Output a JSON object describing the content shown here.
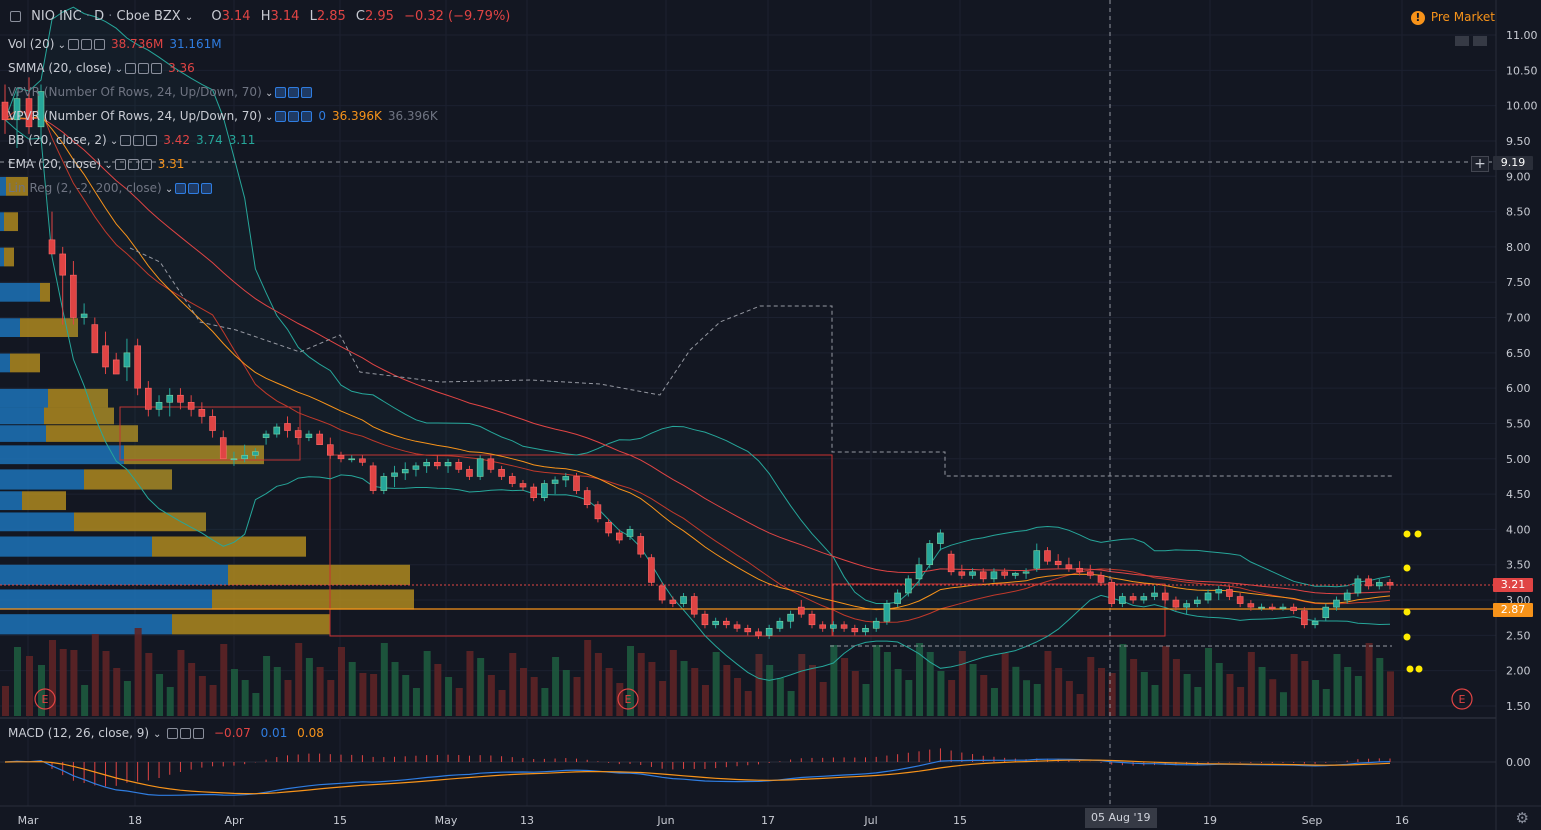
{
  "header": {
    "symbol": "NIO INC",
    "interval": "D",
    "exchange": "Cboe BZX",
    "open_label": "O",
    "open": "3.14",
    "high_label": "H",
    "high": "3.14",
    "low_label": "L",
    "low": "2.85",
    "close_label": "C",
    "close": "2.95",
    "change": "−0.32 (−9.79%)",
    "premarket": "Pre Market"
  },
  "indicators": [
    {
      "name": "Vol (20)",
      "values": [
        "38.736M",
        "31.161M"
      ],
      "colors": [
        "#e04444",
        "#2f7de1"
      ]
    },
    {
      "name": "SMMA (20, close)",
      "values": [
        "3.36"
      ],
      "colors": [
        "#e04444"
      ]
    },
    {
      "name": "VPVR (Number Of Rows, 24, Up/Down, 70)",
      "values": [],
      "colors": []
    },
    {
      "name": "VPVR (Number Of Rows, 24, Up/Down, 70)",
      "values": [
        "0",
        "36.396K",
        "36.396K"
      ],
      "colors": [
        "#2f7de1",
        "#f7931a",
        "#6f7482"
      ]
    },
    {
      "name": "BB (20, close, 2)",
      "values": [
        "3.42",
        "3.74",
        "3.11"
      ],
      "colors": [
        "#e04444",
        "#26a69a",
        "#26a69a"
      ]
    },
    {
      "name": "EMA (20, close)",
      "values": [
        "3.31"
      ],
      "colors": [
        "#f7931a"
      ]
    },
    {
      "name": "Lin Reg (2, -2, 200, close)",
      "values": [],
      "colors": []
    }
  ],
  "macd_legend": {
    "name": "MACD (12, 26, close, 9)",
    "values": [
      "−0.07",
      "0.01",
      "0.08"
    ],
    "colors": [
      "#e04444",
      "#2f7de1",
      "#f7931a"
    ]
  },
  "price_tags": {
    "cross": "9.19",
    "last": "3.21",
    "ema": "2.87"
  },
  "date_tag": "05 Aug '19",
  "earnings_marker": "E",
  "colors": {
    "up": "#26a69a",
    "down": "#e04444",
    "bg": "#131722",
    "ema": "#f7931a",
    "bb": "#26a69a",
    "smma": "#e04444",
    "macd": "#2f7de1",
    "signal": "#f7931a"
  },
  "chart_data": {
    "type": "candlestick",
    "y_axis": {
      "ticks": [
        11.0,
        10.5,
        10.0,
        9.5,
        9.0,
        8.5,
        8.0,
        7.5,
        7.0,
        6.5,
        6.0,
        5.5,
        5.0,
        4.5,
        4.0,
        3.5,
        3.0,
        2.5,
        2.0,
        1.5
      ],
      "range": [
        1.4,
        11.5
      ]
    },
    "x_axis": {
      "ticks": [
        "Mar",
        "18",
        "Apr",
        "15",
        "May",
        "13",
        "Jun",
        "17",
        "Jul",
        "15",
        "Aug",
        "19",
        "Sep",
        "16"
      ]
    },
    "macd_axis": {
      "ticks": [
        0.0
      ]
    },
    "candles": [
      [
        10.05,
        10.3,
        9.6,
        9.8
      ],
      [
        9.8,
        10.2,
        9.4,
        10.1
      ],
      [
        10.1,
        10.4,
        9.6,
        9.7
      ],
      [
        9.7,
        10.3,
        9.5,
        10.2
      ],
      [
        8.1,
        8.5,
        7.9,
        7.9
      ],
      [
        7.9,
        8.0,
        6.9,
        7.6
      ],
      [
        7.6,
        7.8,
        6.9,
        7.0
      ],
      [
        7.0,
        7.2,
        6.9,
        7.05
      ],
      [
        6.9,
        7.0,
        6.5,
        6.5
      ],
      [
        6.6,
        6.8,
        6.2,
        6.3
      ],
      [
        6.4,
        6.5,
        6.2,
        6.2
      ],
      [
        6.3,
        6.7,
        6.1,
        6.5
      ],
      [
        6.6,
        6.7,
        5.9,
        6.0
      ],
      [
        6.0,
        6.1,
        5.6,
        5.7
      ],
      [
        5.7,
        5.9,
        5.6,
        5.8
      ],
      [
        5.8,
        6.0,
        5.6,
        5.9
      ],
      [
        5.9,
        6.0,
        5.7,
        5.8
      ],
      [
        5.8,
        5.9,
        5.6,
        5.7
      ],
      [
        5.7,
        5.8,
        5.5,
        5.6
      ],
      [
        5.6,
        5.7,
        5.3,
        5.4
      ],
      [
        5.3,
        5.4,
        5.0,
        5.0
      ],
      [
        5.0,
        5.1,
        4.9,
        5.0
      ],
      [
        5.0,
        5.2,
        4.95,
        5.05
      ],
      [
        5.05,
        5.15,
        5.0,
        5.1
      ],
      [
        5.3,
        5.4,
        5.2,
        5.35
      ],
      [
        5.35,
        5.5,
        5.3,
        5.45
      ],
      [
        5.5,
        5.6,
        5.3,
        5.4
      ],
      [
        5.4,
        5.45,
        5.2,
        5.3
      ],
      [
        5.3,
        5.4,
        5.25,
        5.35
      ],
      [
        5.35,
        5.4,
        5.2,
        5.2
      ],
      [
        5.2,
        5.3,
        5.0,
        5.05
      ],
      [
        5.05,
        5.1,
        4.95,
        5.0
      ],
      [
        5.0,
        5.05,
        4.95,
        5.0
      ],
      [
        5.0,
        5.05,
        4.9,
        4.95
      ],
      [
        4.9,
        4.95,
        4.5,
        4.55
      ],
      [
        4.55,
        4.8,
        4.5,
        4.75
      ],
      [
        4.75,
        4.9,
        4.6,
        4.8
      ],
      [
        4.8,
        4.95,
        4.7,
        4.85
      ],
      [
        4.85,
        4.95,
        4.75,
        4.9
      ],
      [
        4.9,
        5.0,
        4.8,
        4.95
      ],
      [
        4.95,
        5.05,
        4.85,
        4.9
      ],
      [
        4.9,
        5.0,
        4.8,
        4.95
      ],
      [
        4.95,
        5.0,
        4.8,
        4.85
      ],
      [
        4.85,
        4.9,
        4.7,
        4.75
      ],
      [
        4.75,
        5.05,
        4.7,
        5.0
      ],
      [
        5.0,
        5.05,
        4.8,
        4.85
      ],
      [
        4.85,
        4.9,
        4.7,
        4.75
      ],
      [
        4.75,
        4.8,
        4.6,
        4.65
      ],
      [
        4.65,
        4.7,
        4.55,
        4.6
      ],
      [
        4.6,
        4.65,
        4.4,
        4.45
      ],
      [
        4.45,
        4.7,
        4.4,
        4.65
      ],
      [
        4.65,
        4.75,
        4.5,
        4.7
      ],
      [
        4.7,
        4.8,
        4.6,
        4.75
      ],
      [
        4.75,
        4.8,
        4.5,
        4.55
      ],
      [
        4.55,
        4.6,
        4.3,
        4.35
      ],
      [
        4.35,
        4.4,
        4.1,
        4.15
      ],
      [
        4.1,
        4.15,
        3.9,
        3.95
      ],
      [
        3.95,
        4.0,
        3.8,
        3.85
      ],
      [
        3.9,
        4.05,
        3.85,
        4.0
      ],
      [
        3.9,
        3.95,
        3.6,
        3.65
      ],
      [
        3.6,
        3.65,
        3.2,
        3.25
      ],
      [
        3.2,
        3.25,
        2.95,
        3.0
      ],
      [
        3.0,
        3.05,
        2.9,
        2.95
      ],
      [
        2.95,
        3.1,
        2.9,
        3.05
      ],
      [
        3.05,
        3.1,
        2.75,
        2.8
      ],
      [
        2.8,
        2.85,
        2.6,
        2.65
      ],
      [
        2.65,
        2.75,
        2.6,
        2.7
      ],
      [
        2.7,
        2.75,
        2.6,
        2.65
      ],
      [
        2.65,
        2.7,
        2.55,
        2.6
      ],
      [
        2.6,
        2.65,
        2.5,
        2.55
      ],
      [
        2.55,
        2.6,
        2.45,
        2.5
      ],
      [
        2.5,
        2.65,
        2.45,
        2.6
      ],
      [
        2.6,
        2.75,
        2.55,
        2.7
      ],
      [
        2.7,
        2.85,
        2.6,
        2.8
      ],
      [
        2.9,
        3.0,
        2.75,
        2.8
      ],
      [
        2.8,
        2.85,
        2.6,
        2.65
      ],
      [
        2.65,
        2.7,
        2.55,
        2.6
      ],
      [
        2.6,
        2.7,
        2.55,
        2.65
      ],
      [
        2.65,
        2.7,
        2.55,
        2.6
      ],
      [
        2.6,
        2.65,
        2.5,
        2.55
      ],
      [
        2.55,
        2.65,
        2.5,
        2.6
      ],
      [
        2.6,
        2.75,
        2.55,
        2.7
      ],
      [
        2.7,
        3.0,
        2.65,
        2.95
      ],
      [
        2.95,
        3.15,
        2.9,
        3.1
      ],
      [
        3.1,
        3.35,
        3.05,
        3.3
      ],
      [
        3.3,
        3.6,
        3.2,
        3.5
      ],
      [
        3.5,
        3.85,
        3.45,
        3.8
      ],
      [
        3.8,
        4.0,
        3.7,
        3.95
      ],
      [
        3.65,
        3.7,
        3.35,
        3.4
      ],
      [
        3.4,
        3.5,
        3.3,
        3.35
      ],
      [
        3.35,
        3.45,
        3.3,
        3.4
      ],
      [
        3.4,
        3.45,
        3.25,
        3.3
      ],
      [
        3.3,
        3.45,
        3.25,
        3.4
      ],
      [
        3.4,
        3.45,
        3.3,
        3.35
      ],
      [
        3.35,
        3.4,
        3.3,
        3.38
      ],
      [
        3.38,
        3.45,
        3.3,
        3.4
      ],
      [
        3.45,
        3.8,
        3.4,
        3.7
      ],
      [
        3.7,
        3.75,
        3.5,
        3.55
      ],
      [
        3.55,
        3.65,
        3.45,
        3.5
      ],
      [
        3.5,
        3.6,
        3.4,
        3.45
      ],
      [
        3.45,
        3.55,
        3.35,
        3.4
      ],
      [
        3.4,
        3.5,
        3.3,
        3.35
      ],
      [
        3.35,
        3.4,
        3.2,
        3.25
      ],
      [
        3.25,
        3.3,
        2.9,
        2.95
      ],
      [
        2.95,
        3.1,
        2.9,
        3.05
      ],
      [
        3.05,
        3.1,
        2.95,
        3.0
      ],
      [
        3.0,
        3.1,
        2.95,
        3.05
      ],
      [
        3.05,
        3.2,
        3.0,
        3.1
      ],
      [
        3.1,
        3.15,
        2.95,
        3.0
      ],
      [
        3.0,
        3.05,
        2.85,
        2.9
      ],
      [
        2.9,
        3.0,
        2.8,
        2.95
      ],
      [
        2.95,
        3.05,
        2.9,
        3.0
      ],
      [
        3.0,
        3.15,
        2.95,
        3.1
      ],
      [
        3.1,
        3.2,
        3.0,
        3.15
      ],
      [
        3.15,
        3.2,
        3.0,
        3.05
      ],
      [
        3.05,
        3.1,
        2.9,
        2.95
      ],
      [
        2.95,
        3.0,
        2.85,
        2.9
      ],
      [
        2.9,
        2.95,
        2.85,
        2.9
      ],
      [
        2.9,
        2.95,
        2.85,
        2.88
      ],
      [
        2.88,
        2.95,
        2.85,
        2.9
      ],
      [
        2.9,
        2.95,
        2.8,
        2.85
      ],
      [
        2.85,
        2.9,
        2.6,
        2.65
      ],
      [
        2.65,
        2.75,
        2.6,
        2.7
      ],
      [
        2.75,
        2.95,
        2.7,
        2.9
      ],
      [
        2.9,
        3.05,
        2.85,
        3.0
      ],
      [
        3.0,
        3.15,
        2.95,
        3.1
      ],
      [
        3.1,
        3.35,
        3.05,
        3.3
      ],
      [
        3.3,
        3.35,
        3.15,
        3.2
      ],
      [
        3.2,
        3.3,
        3.15,
        3.25
      ],
      [
        3.25,
        3.3,
        3.15,
        3.21
      ]
    ]
  }
}
